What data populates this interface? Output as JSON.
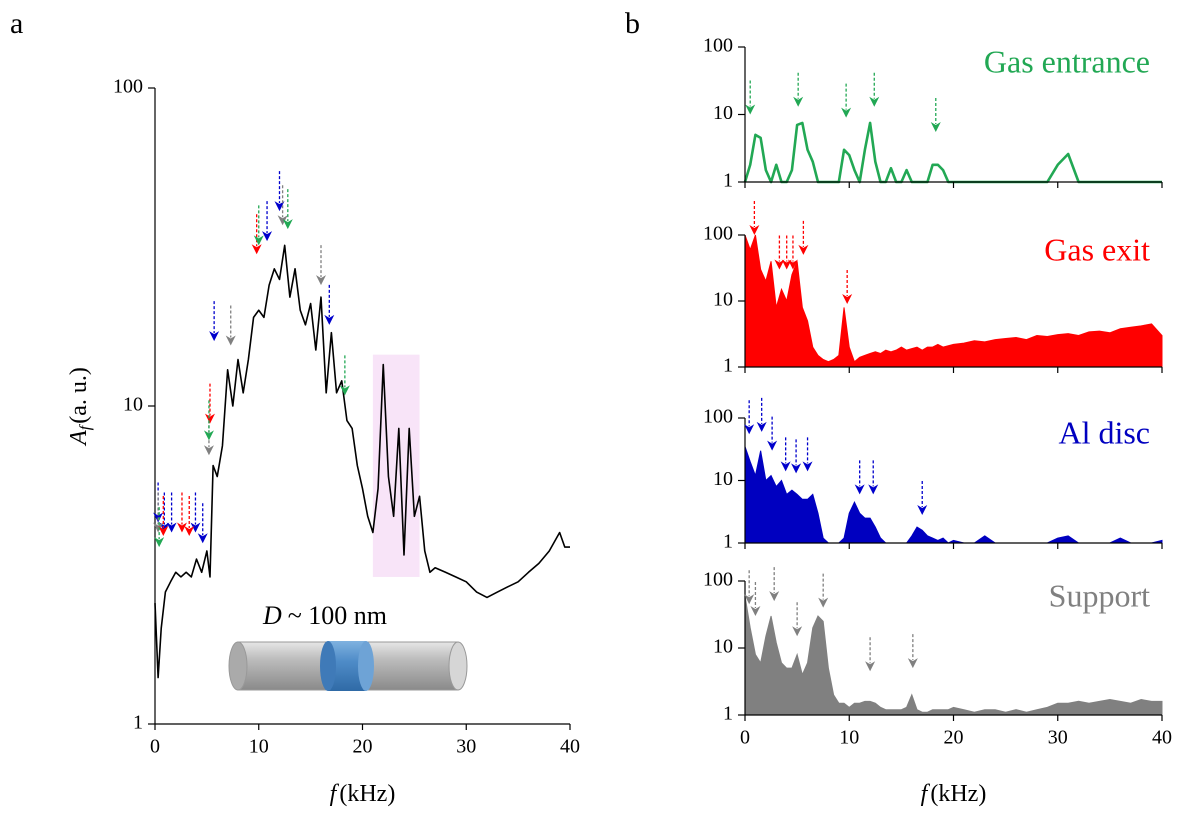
{
  "chart_data": [
    {
      "type": "line",
      "panel": "a",
      "color": "#000000",
      "log_y": true,
      "ylabel": {
        "symbol": "A",
        "subscript": "f",
        "unit": "(a. u.)"
      },
      "xlabel": {
        "symbol": "f",
        "unit": "(kHz)"
      },
      "annotation": {
        "symbol": "D",
        "text": "~ 100 nm"
      },
      "xlim": [
        0,
        40
      ],
      "xticks": [
        0,
        10,
        20,
        30,
        40
      ],
      "ylim": [
        1,
        100
      ],
      "yticks": [
        1,
        10,
        100
      ],
      "highlight": {
        "x": [
          21,
          25.5
        ],
        "y": [
          2.9,
          14.5
        ],
        "color": "#f8e4f8"
      },
      "x": [
        0,
        0.3,
        0.6,
        1,
        1.5,
        2,
        2.5,
        3,
        3.5,
        4,
        4.5,
        5,
        5.3,
        5.6,
        6,
        6.5,
        7,
        7.5,
        8,
        8.5,
        9,
        9.5,
        10,
        10.5,
        11,
        11.5,
        12,
        12.5,
        13,
        13.5,
        14,
        14.5,
        15,
        15.5,
        16,
        16.5,
        17,
        17.5,
        18,
        18.5,
        19,
        19.5,
        20,
        20.5,
        21,
        21.5,
        22,
        22.5,
        23,
        23.5,
        24,
        24.5,
        25,
        25.5,
        26,
        26.5,
        27,
        28,
        29,
        30,
        31,
        32,
        33,
        34,
        35,
        36,
        37,
        38,
        39,
        39.5,
        40
      ],
      "values": [
        2.4,
        1.4,
        2.0,
        2.6,
        2.8,
        3.0,
        2.9,
        3.0,
        2.9,
        3.3,
        3.0,
        3.5,
        2.9,
        6.5,
        6.0,
        7.5,
        13,
        10,
        14,
        11,
        14,
        19,
        20,
        19,
        24,
        27,
        25,
        32,
        22,
        27,
        20,
        18,
        21,
        15,
        22,
        11,
        17,
        11,
        12,
        9,
        8.5,
        6.5,
        5.5,
        4.5,
        4.0,
        5.5,
        13.5,
        6,
        4.5,
        8.5,
        3.4,
        8.5,
        4.5,
        5.2,
        3.5,
        3.0,
        3.1,
        3.0,
        2.9,
        2.8,
        2.6,
        2.5,
        2.6,
        2.7,
        2.8,
        3.0,
        3.2,
        3.5,
        4.0,
        3.6,
        3.6
      ],
      "arrows": [
        {
          "color": "#0000cc",
          "x": [
            0.3,
            0.9,
            1.6,
            3.9,
            4.6,
            5.7,
            10.8,
            12,
            16.8
          ],
          "y": [
            4.3,
            4.0,
            4.0,
            4.0,
            3.7,
            16,
            33,
            41,
            18
          ]
        },
        {
          "color": "#808080",
          "x": [
            0.3,
            5.2,
            7.3,
            12.3,
            16
          ],
          "y": [
            4.0,
            7,
            15.5,
            37,
            24
          ]
        },
        {
          "color": "#ff0000",
          "x": [
            0.8,
            2.6,
            3.3,
            5.3,
            9.8
          ],
          "y": [
            3.9,
            4.0,
            3.9,
            8.8,
            30
          ]
        },
        {
          "color": "#22a854",
          "x": [
            0.4,
            5.2,
            10,
            12.8,
            18.3
          ],
          "y": [
            3.6,
            7.8,
            32,
            36,
            10.8
          ]
        }
      ]
    },
    {
      "type": "line",
      "panel": "b",
      "title": "Gas entrance",
      "color": "#22a854",
      "log_y": true,
      "xlim": [
        0,
        40
      ],
      "xticks": [
        0,
        10,
        20,
        30,
        40
      ],
      "ylim": [
        1,
        100
      ],
      "yticks": [
        1,
        10,
        100
      ],
      "x": [
        0,
        0.5,
        1,
        1.5,
        2,
        2.5,
        3,
        3.5,
        4,
        4.5,
        5,
        5.5,
        6,
        6.5,
        7,
        7.5,
        8,
        8.5,
        9,
        9.5,
        10,
        10.5,
        11,
        11.5,
        12,
        12.5,
        13,
        13.5,
        14,
        14.5,
        15,
        15.5,
        16,
        16.5,
        17,
        17.5,
        18,
        18.5,
        19,
        19.5,
        20,
        21,
        22,
        23,
        24,
        25,
        26,
        27,
        28,
        29,
        30,
        31,
        32,
        33,
        34,
        35,
        36,
        37,
        38,
        39,
        40
      ],
      "values": [
        1,
        1.8,
        5,
        4.5,
        1.5,
        1,
        1.8,
        1,
        1,
        1.5,
        7,
        7.5,
        3,
        2,
        1,
        1,
        1,
        1,
        1,
        3,
        2.5,
        1.5,
        1,
        3,
        7.5,
        2,
        1,
        1,
        1.6,
        1,
        1,
        1.5,
        1,
        1,
        1,
        1,
        1.8,
        1.8,
        1.5,
        1,
        1,
        1,
        1,
        1,
        1,
        1,
        1,
        1,
        1,
        1,
        1.8,
        2.6,
        1,
        1,
        1,
        1,
        1,
        1,
        1,
        1,
        1
      ],
      "arrows": [
        {
          "color": "#22a854",
          "x": [
            0.5,
            5.1,
            9.7,
            12.4,
            18.3
          ],
          "y": [
            10,
            13,
            9,
            13,
            5.5
          ]
        }
      ]
    },
    {
      "type": "area",
      "title": "Gas exit",
      "color": "#ff0000",
      "log_y": true,
      "xlim": [
        0,
        40
      ],
      "xticks": [
        0,
        10,
        20,
        30,
        40
      ],
      "ylim": [
        1,
        100
      ],
      "yticks": [
        1,
        10,
        100
      ],
      "x": [
        0,
        0.5,
        1,
        1.5,
        2,
        2.5,
        3,
        3.5,
        4,
        4.5,
        5,
        5.5,
        6,
        6.5,
        7,
        7.5,
        8,
        8.5,
        9,
        9.5,
        10,
        10.5,
        11,
        11.5,
        12,
        12.5,
        13,
        13.5,
        14,
        14.5,
        15,
        15.5,
        16,
        16.5,
        17,
        17.5,
        18,
        18.5,
        19,
        19.5,
        20,
        21,
        22,
        23,
        24,
        25,
        26,
        27,
        28,
        29,
        30,
        31,
        32,
        33,
        34,
        35,
        36,
        37,
        38,
        39,
        40
      ],
      "values": [
        100,
        60,
        100,
        30,
        20,
        40,
        8,
        15,
        10,
        25,
        40,
        8,
        5,
        2,
        1.5,
        1.3,
        1.2,
        1.3,
        1.5,
        8,
        2,
        1.2,
        1.4,
        1.5,
        1.6,
        1.7,
        1.6,
        1.8,
        1.7,
        1.8,
        2,
        1.8,
        1.9,
        2,
        1.8,
        2,
        2,
        2.2,
        2,
        2.1,
        2.2,
        2.3,
        2.5,
        2.4,
        2.6,
        2.7,
        2.8,
        2.6,
        3,
        2.9,
        3.1,
        3.2,
        3,
        3.4,
        3.5,
        3.3,
        3.8,
        4,
        4.2,
        4.5,
        3
      ],
      "arrows": [
        {
          "color": "#ff0000",
          "x": [
            0.9,
            3.3,
            4,
            4.6,
            5.6,
            9.8
          ],
          "y": [
            100,
            30,
            30,
            30,
            50,
            9
          ]
        }
      ]
    },
    {
      "type": "area",
      "title": "Al disc",
      "color": "#0000c0",
      "log_y": true,
      "xlim": [
        0,
        40
      ],
      "xticks": [
        0,
        10,
        20,
        30,
        40
      ],
      "ylim": [
        1,
        100
      ],
      "yticks": [
        1,
        10,
        100
      ],
      "x": [
        0,
        0.5,
        1,
        1.5,
        2,
        2.5,
        3,
        3.5,
        4,
        4.5,
        5,
        5.5,
        6,
        6.5,
        7,
        7.5,
        8,
        8.5,
        9,
        9.5,
        10,
        10.5,
        11,
        11.5,
        12,
        12.5,
        13,
        13.5,
        14,
        14.5,
        15,
        15.5,
        16,
        16.5,
        17,
        17.5,
        18,
        18.5,
        19,
        19.5,
        20,
        21,
        22,
        23,
        24,
        25,
        26,
        27,
        28,
        29,
        30,
        31,
        32,
        33,
        34,
        35,
        36,
        37,
        38,
        39,
        40
      ],
      "values": [
        35,
        20,
        12,
        30,
        10,
        12,
        8,
        10,
        6,
        7,
        6,
        5,
        5,
        6,
        3,
        1.2,
        1,
        1,
        1,
        1.2,
        3,
        4.5,
        3,
        2.5,
        2.5,
        1.8,
        1.2,
        1,
        1,
        1,
        1,
        1,
        1.3,
        1.8,
        1.6,
        1.3,
        1.2,
        1.1,
        1.2,
        1,
        1.1,
        1,
        1,
        1.3,
        1,
        1,
        1,
        1,
        1,
        1,
        1.2,
        1.3,
        1,
        1,
        1,
        1,
        1.2,
        1,
        1,
        1,
        1.1
      ],
      "arrows": [
        {
          "color": "#0000cc",
          "x": [
            0.4,
            1.6,
            2.6,
            3.9,
            4.9,
            6,
            11,
            12.3,
            17
          ],
          "y": [
            55,
            60,
            30,
            14,
            13,
            14,
            6,
            6,
            2.8
          ]
        }
      ]
    },
    {
      "type": "area",
      "title": "Support",
      "color": "#808080",
      "log_y": true,
      "xlabel": {
        "symbol": "f",
        "unit": "(kHz)"
      },
      "xlim": [
        0,
        40
      ],
      "xticks": [
        0,
        10,
        20,
        30,
        40
      ],
      "ylim": [
        1,
        100
      ],
      "yticks": [
        1,
        10,
        100
      ],
      "x": [
        0,
        0.5,
        1,
        1.5,
        2,
        2.5,
        3,
        3.5,
        4,
        4.5,
        5,
        5.5,
        6,
        6.5,
        7,
        7.5,
        8,
        8.5,
        9,
        9.5,
        10,
        10.5,
        11,
        11.5,
        12,
        12.5,
        13,
        13.5,
        14,
        14.5,
        15,
        15.5,
        16,
        16.5,
        17,
        17.5,
        18,
        18.5,
        19,
        19.5,
        20,
        21,
        22,
        23,
        24,
        25,
        26,
        27,
        28,
        29,
        30,
        31,
        32,
        33,
        34,
        35,
        36,
        37,
        38,
        39,
        40
      ],
      "values": [
        60,
        20,
        8,
        6,
        15,
        30,
        12,
        6,
        5,
        5,
        8,
        4,
        6,
        20,
        30,
        25,
        5,
        2,
        1.5,
        1.5,
        1.3,
        1.5,
        1.5,
        1.6,
        1.6,
        1.5,
        1.3,
        1.2,
        1.2,
        1.2,
        1.2,
        1.3,
        2,
        1.2,
        1.1,
        1.1,
        1.2,
        1.2,
        1.2,
        1.2,
        1.3,
        1.2,
        1.1,
        1.2,
        1.2,
        1.1,
        1.2,
        1.1,
        1.2,
        1.3,
        1.5,
        1.5,
        1.6,
        1.5,
        1.6,
        1.7,
        1.6,
        1.5,
        1.7,
        1.6,
        1.6
      ],
      "arrows": [
        {
          "color": "#808080",
          "x": [
            0.4,
            1,
            2.8,
            5,
            7.5,
            12,
            16.1
          ],
          "y": [
            45,
            30,
            50,
            15,
            40,
            4.5,
            5
          ]
        }
      ]
    }
  ]
}
